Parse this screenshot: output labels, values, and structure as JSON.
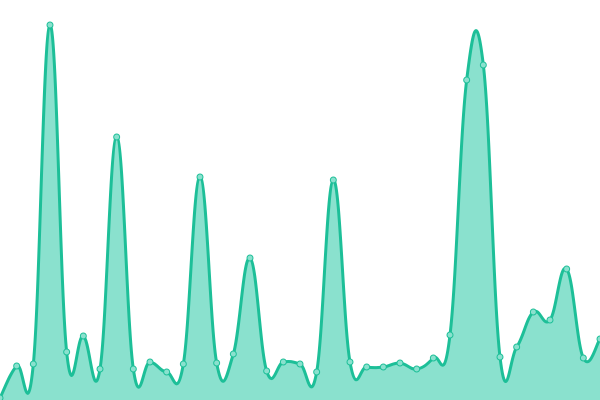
{
  "chart_data": {
    "type": "area",
    "title": "",
    "xlabel": "",
    "ylabel": "",
    "grid": false,
    "axes_visible": false,
    "smoothing": "curved",
    "x": [
      0,
      1,
      2,
      3,
      4,
      5,
      6,
      7,
      8,
      9,
      10,
      11,
      12,
      13,
      14,
      15,
      16,
      17,
      18,
      19,
      20,
      21,
      22,
      23,
      24,
      25,
      26,
      27,
      28,
      29,
      30,
      31,
      32,
      33,
      34,
      35,
      36
    ],
    "ylim": [
      0,
      400
    ],
    "series": [
      {
        "values": [
          2,
          34,
          36,
          375,
          48,
          64,
          31,
          263,
          31,
          38,
          28,
          36,
          223,
          37,
          46,
          142,
          29,
          38,
          36,
          28,
          220,
          38,
          33,
          33,
          37,
          31,
          42,
          65,
          320,
          335,
          43,
          53,
          88,
          80,
          131,
          42,
          61
        ],
        "line_color": "#1dbf98",
        "fill_color": "#8ae1ce",
        "marker_fill": "#8ae1ce"
      }
    ]
  }
}
